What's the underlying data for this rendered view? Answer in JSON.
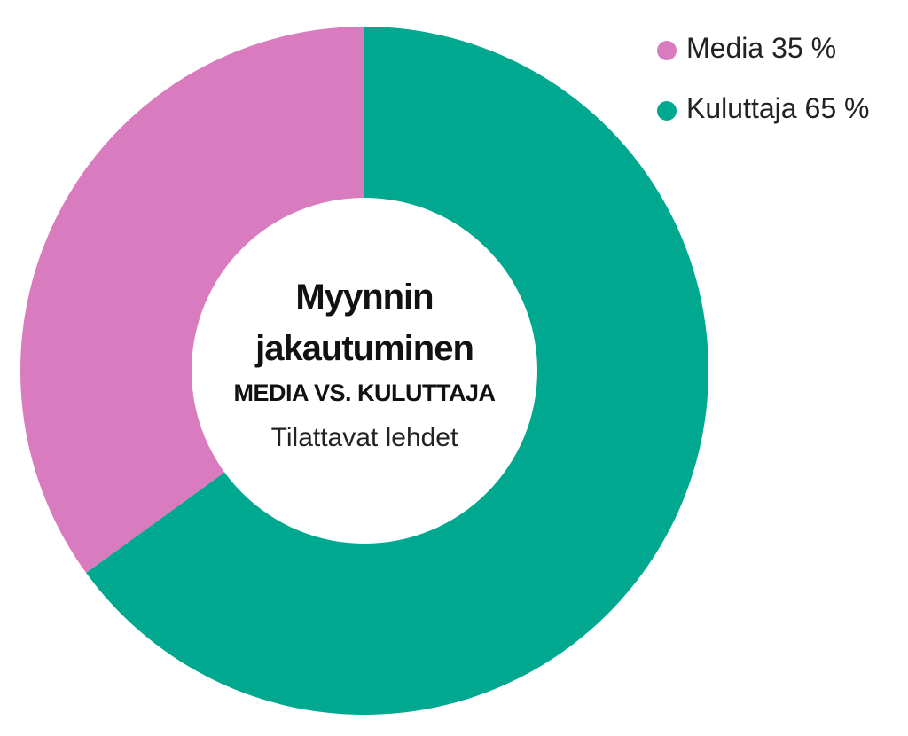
{
  "chart_data": {
    "type": "donut",
    "title": "Myynnin jakautuminen",
    "subtitle": "MEDIA VS. KULUTTAJA",
    "caption": "Tilattavat lehdet",
    "categories": [
      "Media",
      "Kuluttaja"
    ],
    "values": [
      35,
      65
    ],
    "value_labels": [
      "35 %",
      "65 %"
    ],
    "colors": [
      "#d97bbf",
      "#00a88f"
    ],
    "legend": "top-right"
  }
}
